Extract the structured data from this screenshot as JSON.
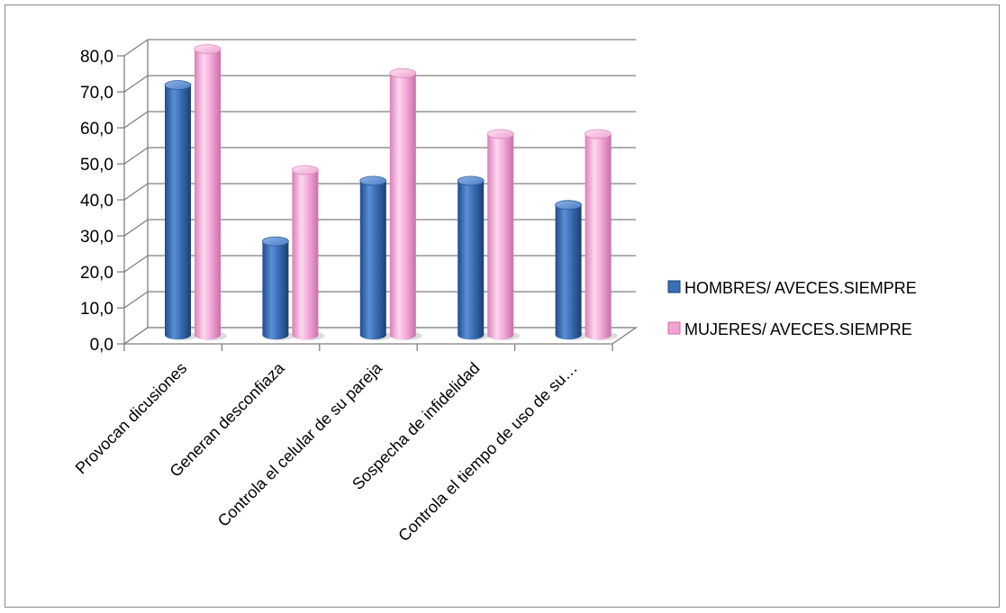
{
  "chart_data": {
    "type": "bar",
    "categories": [
      "Provocan dicusiones",
      "Generan desconfiaza",
      "Controla el celular de su pareja",
      "Sospecha de infidelidad",
      "Controla el tiempo de uso de su…"
    ],
    "series": [
      {
        "name": "HOMBRES/ AVECES.SIEMPRE",
        "values": [
          69.4,
          26.0,
          42.8,
          42.8,
          36.1
        ],
        "color": "#3a6fb5"
      },
      {
        "name": "MUJERES/ AVECES.SIEMPRE",
        "values": [
          79.4,
          45.8,
          72.7,
          55.8,
          55.8
        ],
        "color": "#f2a3d3"
      }
    ],
    "ylim": [
      0,
      80
    ],
    "yticks": [
      "0,0",
      "10,0",
      "20,0",
      "30,0",
      "40,0",
      "50,0",
      "60,0",
      "70,0",
      "80,0"
    ],
    "grid": true,
    "legend": "right",
    "style": "3d-cylinder"
  }
}
